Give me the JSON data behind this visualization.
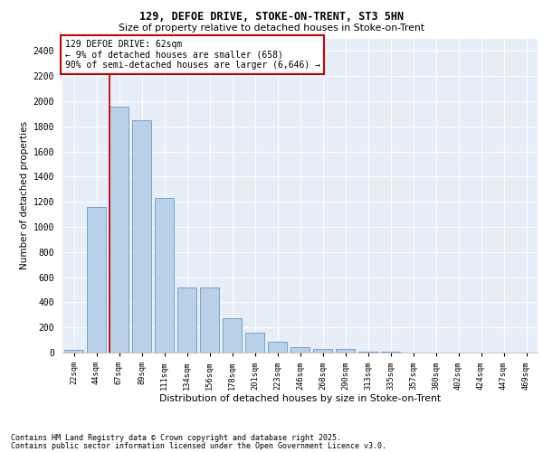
{
  "title1": "129, DEFOE DRIVE, STOKE-ON-TRENT, ST3 5HN",
  "title2": "Size of property relative to detached houses in Stoke-on-Trent",
  "xlabel": "Distribution of detached houses by size in Stoke-on-Trent",
  "ylabel": "Number of detached properties",
  "categories": [
    "22sqm",
    "44sqm",
    "67sqm",
    "89sqm",
    "111sqm",
    "134sqm",
    "156sqm",
    "178sqm",
    "201sqm",
    "223sqm",
    "246sqm",
    "268sqm",
    "290sqm",
    "313sqm",
    "335sqm",
    "357sqm",
    "380sqm",
    "402sqm",
    "424sqm",
    "447sqm",
    "469sqm"
  ],
  "values": [
    25,
    1160,
    1960,
    1850,
    1230,
    515,
    515,
    275,
    155,
    85,
    45,
    30,
    30,
    10,
    5,
    3,
    3,
    2,
    2,
    1,
    1
  ],
  "bar_color": "#b8d0e8",
  "bar_edge_color": "#6699cc",
  "vline_color": "#cc0000",
  "annotation_text": "129 DEFOE DRIVE: 62sqm\n← 9% of detached houses are smaller (658)\n90% of semi-detached houses are larger (6,646) →",
  "annotation_box_color": "#ffffff",
  "annotation_box_edge": "#cc0000",
  "background_color": "#e8eef8",
  "grid_color": "#ffffff",
  "footer1": "Contains HM Land Registry data © Crown copyright and database right 2025.",
  "footer2": "Contains public sector information licensed under the Open Government Licence v3.0.",
  "ylim": [
    0,
    2500
  ],
  "yticks": [
    0,
    200,
    400,
    600,
    800,
    1000,
    1200,
    1400,
    1600,
    1800,
    2000,
    2200,
    2400
  ]
}
